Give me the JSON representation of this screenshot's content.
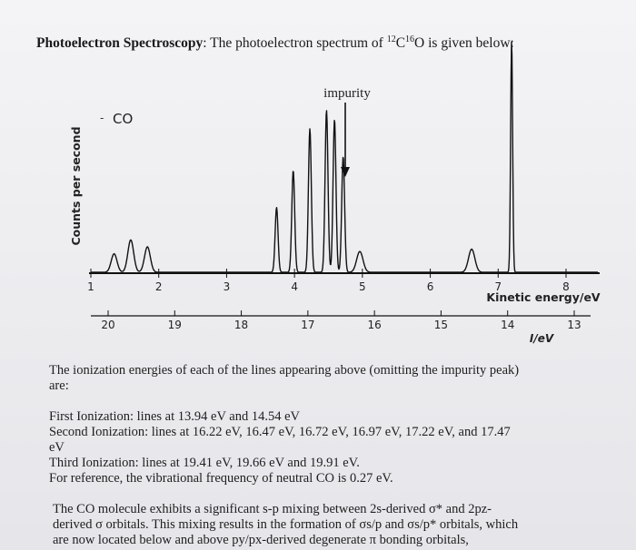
{
  "heading": {
    "bold": "Photoelectron Spectroscopy",
    "rest": ": The photoelectron spectrum of ",
    "iso1": "12",
    "c": "C",
    "iso2": "16",
    "o": "O is given below:"
  },
  "chart_data": {
    "type": "line",
    "title": "",
    "ylabel": "Counts per second",
    "series_label": "CO",
    "annotation": "impurity",
    "top_axis": {
      "label": "Kinetic energy/eV",
      "ticks": [
        "1",
        "2",
        "3",
        "4",
        "5",
        "6",
        "7",
        "8"
      ],
      "xlim": [
        1,
        8
      ]
    },
    "bottom_axis": {
      "label": "I/eV",
      "ticks": [
        "20",
        "19",
        "18",
        "17",
        "16",
        "15",
        "14",
        "13"
      ],
      "xlim": [
        20.1,
        13
      ]
    },
    "peaks": [
      {
        "band": "first",
        "I_eV": 13.94,
        "height": 1.0
      },
      {
        "band": "first",
        "I_eV": 14.54,
        "height": 0.1
      },
      {
        "band": "second",
        "I_eV": 16.22,
        "height": 0.09
      },
      {
        "band": "second",
        "I_eV": 16.47,
        "height": 0.5
      },
      {
        "band": "second",
        "I_eV": 16.72,
        "height": 0.7
      },
      {
        "band": "second",
        "I_eV": 16.97,
        "height": 0.62
      },
      {
        "band": "second",
        "I_eV": 17.22,
        "height": 0.44
      },
      {
        "band": "second",
        "I_eV": 17.47,
        "height": 0.28
      },
      {
        "band": "impurity",
        "I_eV": 16.6,
        "height": 0.66
      },
      {
        "band": "third",
        "I_eV": 19.41,
        "height": 0.11
      },
      {
        "band": "third",
        "I_eV": 19.66,
        "height": 0.14
      },
      {
        "band": "third",
        "I_eV": 19.91,
        "height": 0.08
      }
    ]
  },
  "paragraph1": {
    "l1": "The ionization energies of each of the lines appearing above (omitting the impurity peak)",
    "l2": "are:"
  },
  "paragraph2": {
    "l1": "First Ionization: lines at 13.94 eV and 14.54 eV",
    "l2": "Second Ionization: lines at 16.22 eV, 16.47 eV, 16.72 eV, 16.97 eV, 17.22 eV, and 17.47",
    "l3": "eV",
    "l4": "Third Ionization: lines at 19.41 eV, 19.66 eV and 19.91 eV.",
    "l5": "For reference, the vibrational frequency of neutral CO is 0.27 eV."
  },
  "paragraph3": {
    "l1": "The CO molecule exhibits a significant s-p mixing between 2s-derived σ* and 2pz-",
    "l2": "derived σ orbitals. This mixing results in the formation of σs/p and σs/p* orbitals, which",
    "l3": "are now located below and above py/px-derived degenerate π bonding orbitals,"
  }
}
